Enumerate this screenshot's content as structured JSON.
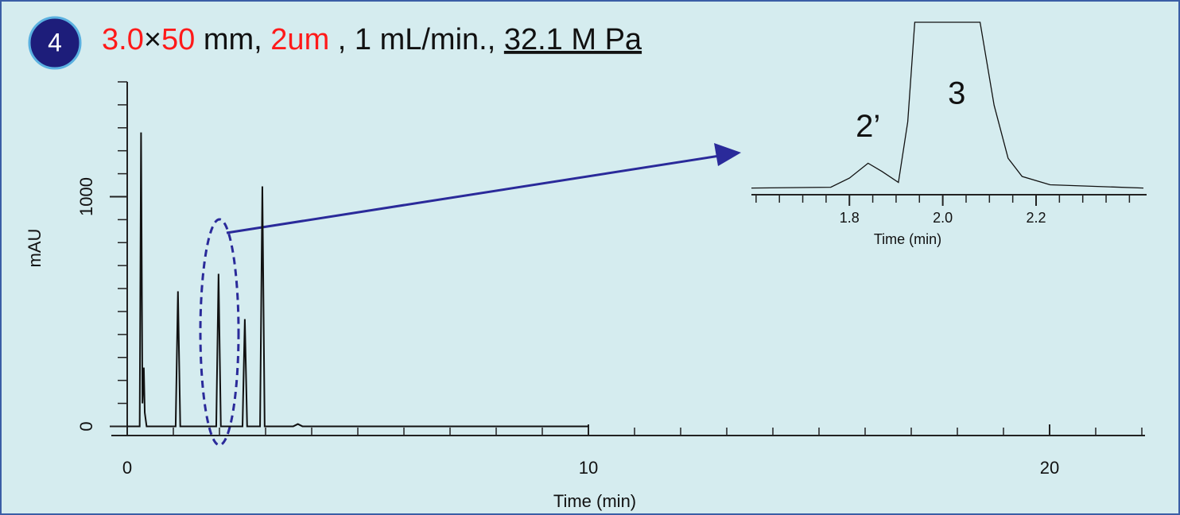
{
  "chart_data": [
    {
      "type": "line",
      "badge": "4",
      "title_parts": [
        {
          "text": "3.0",
          "color": "#ff1a1a"
        },
        {
          "text": "×",
          "color": "#111111"
        },
        {
          "text": "50",
          "color": "#ff1a1a"
        },
        {
          "text": " mm, ",
          "color": "#111111"
        },
        {
          "text": "2um",
          "color": "#ff1a1a"
        },
        {
          "text": " , 1 mL/min., ",
          "color": "#111111"
        },
        {
          "text": "32.1 M Pa",
          "color": "#111111",
          "underline": true
        }
      ],
      "x_label": "Time (min)",
      "y_label": "mAU",
      "xlim": [
        0,
        22
      ],
      "xticks": [
        0,
        10,
        20
      ],
      "xminorticks": [
        1,
        2,
        3,
        4,
        5,
        6,
        7,
        8,
        9,
        11,
        12,
        13,
        14,
        15,
        16,
        17,
        18,
        19,
        21,
        22
      ],
      "ylim": [
        -40,
        1500
      ],
      "yticks": [
        0,
        1000
      ],
      "yminorticks": [
        100,
        200,
        300,
        400,
        500,
        600,
        700,
        800,
        900,
        1100,
        1200,
        1300,
        1400,
        1500
      ],
      "series": [
        {
          "color": "#111111",
          "x": [
            0,
            0.27,
            0.3,
            0.33,
            0.36,
            0.38,
            0.42,
            1.05,
            1.1,
            1.15,
            1.93,
            1.98,
            2.03,
            2.5,
            2.55,
            2.6,
            2.88,
            2.93,
            2.98,
            3.6,
            3.7,
            3.8,
            10
          ],
          "values": [
            0,
            0,
            1280,
            100,
            256,
            60,
            0,
            0,
            588,
            0,
            0,
            664,
            0,
            0,
            467,
            0,
            0,
            1045,
            0,
            0,
            10,
            0,
            0
          ]
        }
      ]
    },
    {
      "type": "line",
      "x_label": "Time (min)",
      "xlim": [
        1.59,
        2.43
      ],
      "xticks": [
        1.8,
        {
          "value": 2,
          "label": "2.0"
        },
        2.2
      ],
      "xminorticks": [
        1.6,
        1.65,
        1.7,
        1.75,
        1.85,
        1.9,
        1.95,
        2.05,
        2.1,
        2.15,
        2.25,
        2.3,
        2.35,
        2.4
      ],
      "ylim": [
        -4,
        100
      ],
      "annotations": [
        {
          "text": "2’",
          "x": 1.84,
          "y": 36
        },
        {
          "text": "3",
          "x": 2.03,
          "y": 56
        }
      ],
      "series": [
        {
          "color": "#111111",
          "x": [
            1.59,
            1.76,
            1.8,
            1.84,
            1.87,
            1.905,
            1.925,
            1.94,
            2.08,
            2.11,
            2.14,
            2.17,
            2.23,
            2.43
          ],
          "values": [
            0,
            0.5,
            6,
            15,
            10,
            3.4,
            40,
            100,
            100,
            50,
            18,
            7,
            2,
            0
          ]
        }
      ]
    }
  ]
}
